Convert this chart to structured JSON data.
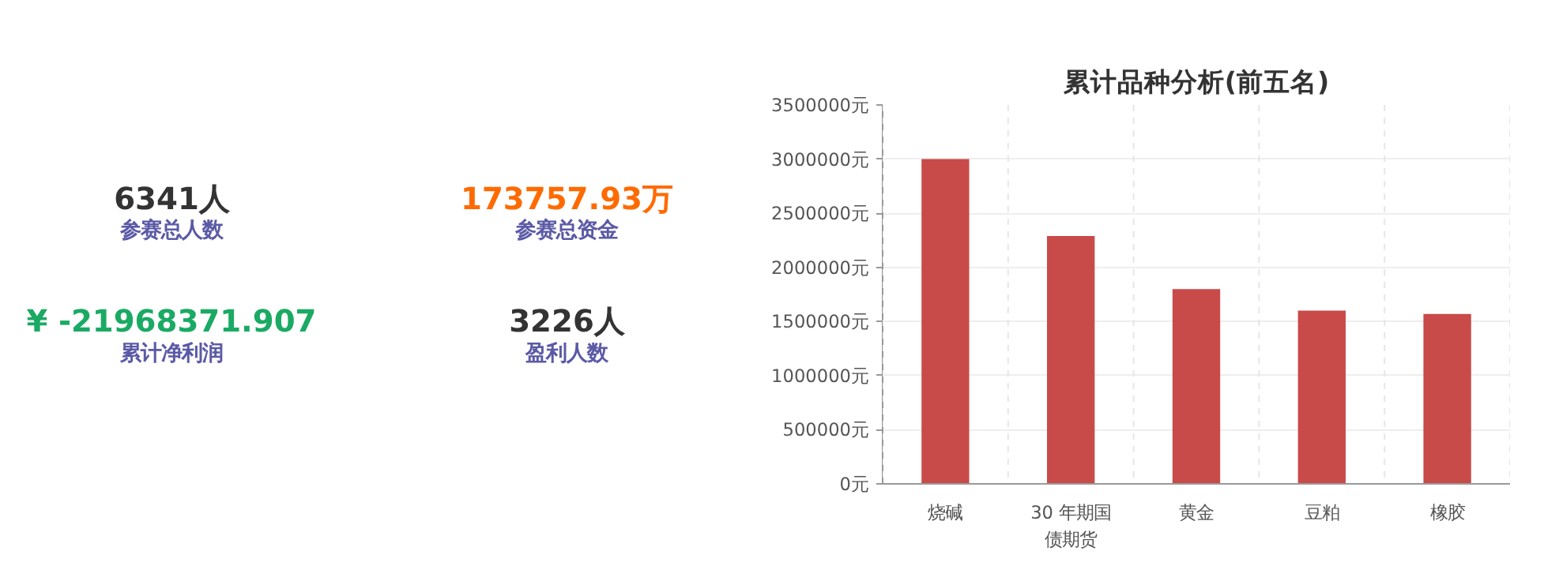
{
  "chart_data": [
    {
      "type": "other",
      "categories": [
        "参赛总人数",
        "参赛总资金",
        "累计净利润",
        "盈利人数"
      ],
      "value_labels": [
        "6341人",
        "173757.93万",
        "¥ -21968371.907",
        "3226人"
      ],
      "colors": [
        "#333333",
        "#ff6a00",
        "#1aaa63",
        "#333333"
      ]
    },
    {
      "type": "bar",
      "title": "累计品种分析(前五名)",
      "categories": [
        "烧碱",
        "30 年期国债期货",
        "黄金",
        "豆粕",
        "橡胶"
      ],
      "values": [
        3000000,
        2290000,
        1800000,
        1600000,
        1570000
      ],
      "color": "#c84a49",
      "ylim": [
        0,
        3500000
      ],
      "yticks": [
        {
          "value": 0,
          "label": "0元"
        },
        {
          "value": 500000,
          "label": "500000元"
        },
        {
          "value": 1000000,
          "label": "1000000元"
        },
        {
          "value": 1500000,
          "label": "1500000元"
        },
        {
          "value": 2000000,
          "label": "2000000元"
        },
        {
          "value": 2500000,
          "label": "2500000元"
        },
        {
          "value": 3000000,
          "label": "3000000元"
        },
        {
          "value": 3500000,
          "label": "3500000元"
        }
      ],
      "grid": true
    }
  ]
}
